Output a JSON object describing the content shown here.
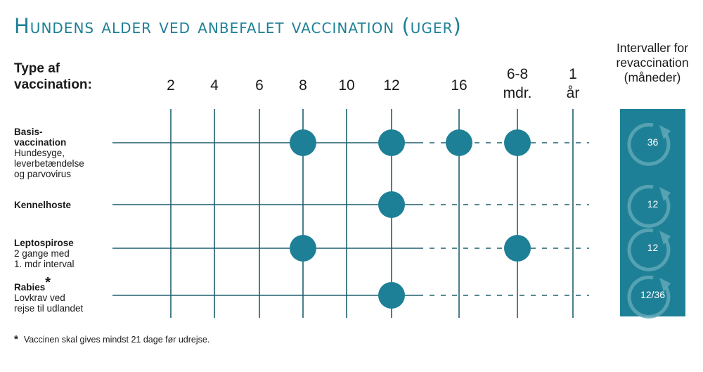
{
  "title": "Hundens alder ved anbefalet vaccination (uger)",
  "type_header": "Type af\nvaccination:",
  "interval_header": "Intervaller for\nrevaccination\n(måneder)",
  "columns": [
    {
      "label": "2"
    },
    {
      "label": "4"
    },
    {
      "label": "6"
    },
    {
      "label": "8"
    },
    {
      "label": "10"
    },
    {
      "label": "12"
    },
    {
      "label": "16"
    },
    {
      "label": "6-8\nmdr."
    },
    {
      "label": "1\når"
    }
  ],
  "rows": [
    {
      "name": "Basis-\nvaccination",
      "sub": "Hundesyge,\nleverbetændelse\nog parvovirus",
      "doses_at_columns": [
        "8",
        "12",
        "16",
        "6-8 mdr."
      ],
      "interval": "36"
    },
    {
      "name": "Kennelhoste",
      "sub": "",
      "doses_at_columns": [
        "12"
      ],
      "interval": "12"
    },
    {
      "name": "Leptospirose",
      "sub": "2 gange med\n1. mdr interval",
      "doses_at_columns": [
        "8",
        "6-8 mdr."
      ],
      "interval": "12"
    },
    {
      "name": "Rabies",
      "name_mark": "*",
      "sub": "Lovkrav ved\nrejse til udlandet",
      "doses_at_columns": [
        "12"
      ],
      "interval": "12/36"
    }
  ],
  "footnote_mark": "*",
  "footnote": "Vaccinen skal gives mindst 21 dage før udrejse.",
  "colors": {
    "accent": "#1e8096",
    "line": "#1e5f6e",
    "text": "#1a1a1a",
    "ring": "#5fa8b8"
  },
  "icons": {
    "interval": "refresh-cycle-icon"
  }
}
